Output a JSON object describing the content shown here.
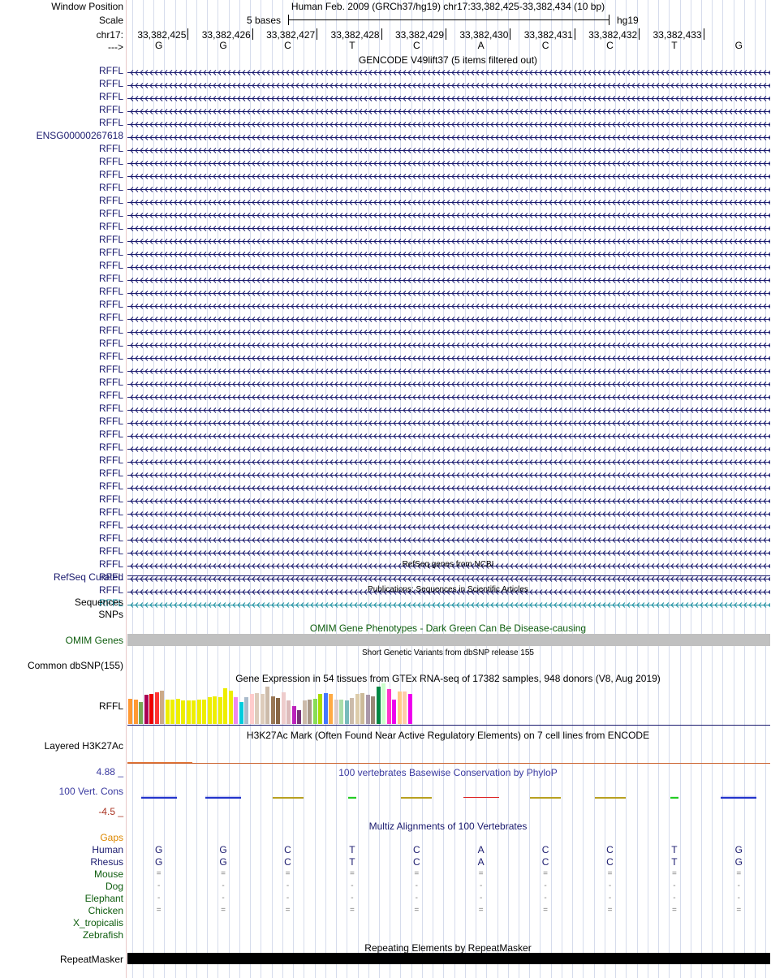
{
  "header": {
    "window_position_label": "Window Position",
    "scale_label": "Scale",
    "chrom_label": "chr17:",
    "strand_label": "--->",
    "assembly_text": "Human Feb. 2009 (GRCh37/hg19)   chr17:33,382,425-33,382,434 (10 bp)",
    "scale_text": "5 bases",
    "scale_assembly": "hg19",
    "positions": [
      "33,382,425",
      "33,382,426",
      "33,382,427",
      "33,382,428",
      "33,382,429",
      "33,382,430",
      "33,382,431",
      "33,382,432",
      "33,382,433"
    ],
    "bases": [
      "G",
      "G",
      "C",
      "T",
      "C",
      "A",
      "C",
      "C",
      "T",
      "G"
    ]
  },
  "gencode": {
    "title": "GENCODE V49lift37 (5 items filtered out)",
    "items": [
      "RFFL",
      "RFFL",
      "RFFL",
      "RFFL",
      "RFFL",
      "ENSG00000267618",
      "RFFL",
      "RFFL",
      "RFFL",
      "RFFL",
      "RFFL",
      "RFFL",
      "RFFL",
      "RFFL",
      "RFFL",
      "RFFL",
      "RFFL",
      "RFFL",
      "RFFL",
      "RFFL",
      "RFFL",
      "RFFL",
      "RFFL",
      "RFFL",
      "RFFL",
      "RFFL",
      "RFFL",
      "RFFL",
      "RFFL",
      "RFFL",
      "RFFL",
      "RFFL",
      "RFFL",
      "RFFL",
      "RFFL",
      "RFFL",
      "RFFL",
      "RFFL",
      "RFFL",
      "RFFL",
      "RFFL",
      "RFFL"
    ],
    "gene_color": "#1a1a6e",
    "last_color": "#1a8fa0"
  },
  "refseq": {
    "title": "RefSeq genes from NCBI",
    "label": "RefSeq Curated"
  },
  "publications": {
    "title": "Publications: Sequences in Scientific Articles",
    "label1": "Sequences",
    "label2": "SNPs"
  },
  "omim": {
    "title": "OMIM Gene Phenotypes - Dark Green Can Be Disease-causing",
    "label": "OMIM Genes",
    "color": "#0d5c0d"
  },
  "dbsnp": {
    "title": "Short Genetic Variants from dbSNP release 155",
    "label": "Common dbSNP(155)"
  },
  "gtex": {
    "title": "Gene Expression in 54 tissues from GTEx RNA-seq of 17382 samples, 948 donors (V8, Aug 2019)",
    "label": "RFFL",
    "values": [
      28,
      27,
      24,
      32,
      33,
      35,
      37,
      27,
      27,
      28,
      26,
      26,
      26,
      27,
      27,
      30,
      31,
      30,
      40,
      37,
      30,
      24,
      30,
      33,
      34,
      33,
      41,
      31,
      29,
      35,
      26,
      20,
      15,
      26,
      27,
      28,
      33,
      34,
      33,
      27,
      27,
      26,
      29,
      33,
      34,
      32,
      31,
      41,
      45,
      39,
      27,
      36,
      36,
      33
    ],
    "colors": [
      "#ff9933",
      "#ff9933",
      "#77aa55",
      "#aa0055",
      "#ee0000",
      "#ff3333",
      "#ccaa88",
      "#eeee00",
      "#eeee00",
      "#eeee00",
      "#eeee00",
      "#eeee00",
      "#eeee00",
      "#eeee00",
      "#eeee00",
      "#eeee00",
      "#eeee00",
      "#eeee00",
      "#eeee00",
      "#eeee00",
      "#ee88ee",
      "#00ccdd",
      "#aabbcc",
      "#ffcccc",
      "#ddccbb",
      "#ddccbb",
      "#ccbbaa",
      "#997755",
      "#886644",
      "#eecccc",
      "#ddbbbb",
      "#bb22bb",
      "#773377",
      "#ccbbaa",
      "#aa9988",
      "#88dd55",
      "#aadd00",
      "#4477ff",
      "#ffaa44",
      "#ddcccc",
      "#aaddaa",
      "#77bbbb",
      "#ccbbaa",
      "#ddccaa",
      "#ccbb99",
      "#aa99aa",
      "#998877",
      "#008844",
      "#ccffcc",
      "#ff33cc",
      "#ee00ee",
      "#ffcc88",
      "#ffccaa",
      "#ee00ee"
    ]
  },
  "h3k27ac": {
    "title": "H3K27Ac Mark (Often Found Near Active Regulatory Elements) on 7 cell lines from ENCODE",
    "label": "Layered H3K27Ac"
  },
  "phylop": {
    "title": "100 vertebrates Basewise Conservation by PhyloP",
    "label": "100 Vert. Cons",
    "max": "4.88 _",
    "min": "-4.5 _",
    "values": [
      2.1,
      2.0,
      0.4,
      0.9,
      0.5,
      -2.6,
      0.3,
      0.3,
      1.1,
      2.2
    ],
    "colors": [
      "#2233cc",
      "#2233cc",
      "#b8a020",
      "#22cc22",
      "#b8a020",
      "#dd2222",
      "#b8a020",
      "#b8a020",
      "#22cc22",
      "#2233cc"
    ]
  },
  "multiz": {
    "title": "Multiz Alignments of 100 Vertebrates",
    "gaps_label": "Gaps",
    "species": [
      {
        "name": "Human",
        "bases": [
          "G",
          "G",
          "C",
          "T",
          "C",
          "A",
          "C",
          "C",
          "T",
          "G"
        ]
      },
      {
        "name": "Rhesus",
        "bases": [
          "G",
          "G",
          "C",
          "T",
          "C",
          "A",
          "C",
          "C",
          "T",
          "G"
        ]
      },
      {
        "name": "Mouse",
        "bases": [
          "=",
          "=",
          "=",
          "=",
          "=",
          "=",
          "=",
          "=",
          "=",
          "="
        ]
      },
      {
        "name": "Dog",
        "bases": [
          "-",
          "-",
          "-",
          "-",
          "-",
          "-",
          "-",
          "-",
          "-",
          "-"
        ]
      },
      {
        "name": "Elephant",
        "bases": [
          "-",
          "-",
          "-",
          "-",
          "-",
          "-",
          "-",
          "-",
          "-",
          "-"
        ]
      },
      {
        "name": "Chicken",
        "bases": [
          "=",
          "=",
          "=",
          "=",
          "=",
          "=",
          "=",
          "=",
          "=",
          "="
        ]
      },
      {
        "name": "X_tropicalis",
        "bases": []
      },
      {
        "name": "Zebrafish",
        "bases": []
      }
    ]
  },
  "repeatmasker": {
    "title": "Repeating Elements by RepeatMasker",
    "label": "RepeatMasker"
  }
}
